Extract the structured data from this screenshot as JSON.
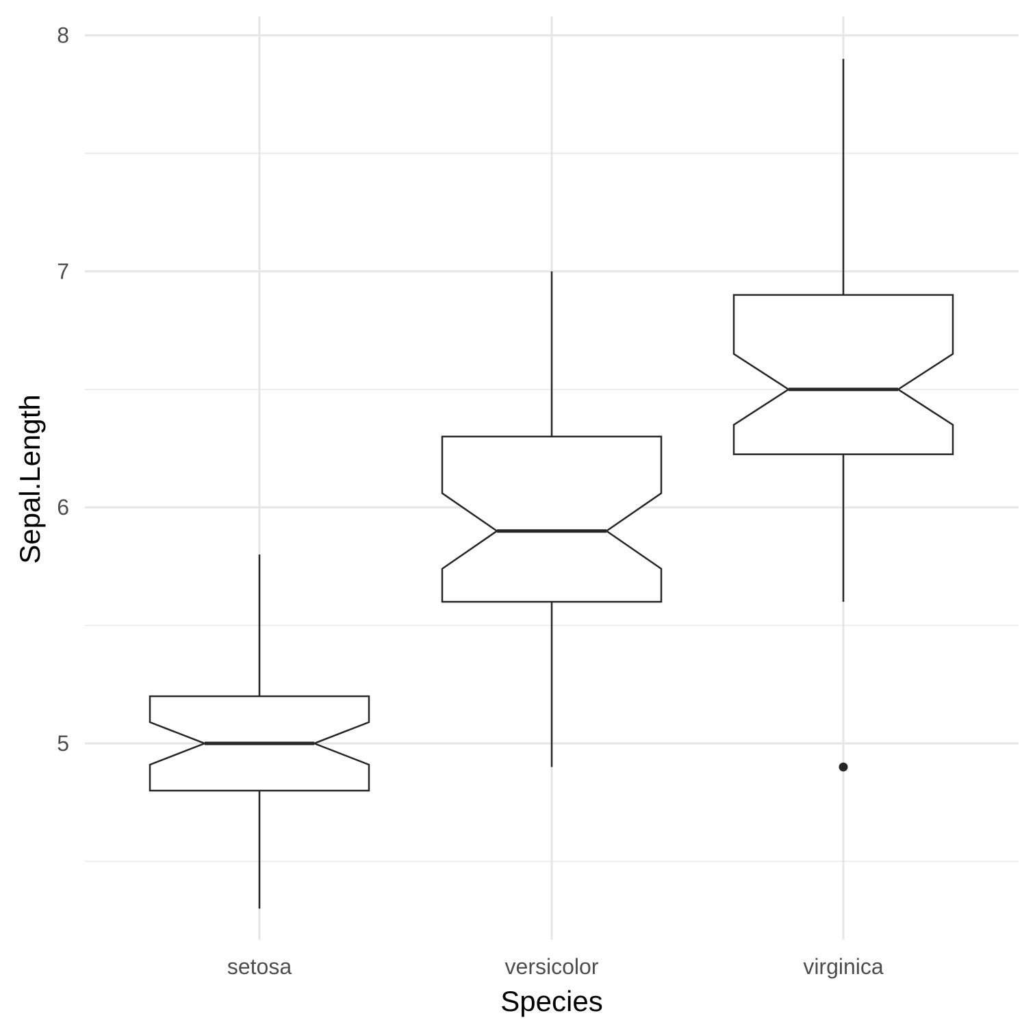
{
  "chart_data": {
    "type": "boxplot",
    "notched": true,
    "xlabel": "Species",
    "ylabel": "Sepal.Length",
    "categories": [
      "setosa",
      "versicolor",
      "virginica"
    ],
    "ylim": [
      4.22,
      8.08
    ],
    "yticks": [
      5,
      6,
      7,
      8
    ],
    "yminor": [
      4.5,
      5.5,
      6.5,
      7.5
    ],
    "grid": true,
    "boxes": [
      {
        "category": "setosa",
        "min": 4.3,
        "q1": 4.8,
        "median": 5.0,
        "q3": 5.2,
        "max": 5.8,
        "notch_low": 4.91,
        "notch_high": 5.09,
        "outliers": []
      },
      {
        "category": "versicolor",
        "min": 4.9,
        "q1": 5.6,
        "median": 5.9,
        "q3": 6.3,
        "max": 7.0,
        "notch_low": 5.74,
        "notch_high": 6.06,
        "outliers": []
      },
      {
        "category": "virginica",
        "min": 5.6,
        "q1": 6.225,
        "median": 6.5,
        "q3": 6.9,
        "max": 7.9,
        "notch_low": 6.35,
        "notch_high": 6.65,
        "outliers": [
          4.9
        ]
      }
    ],
    "colors": {
      "stroke": "#262626",
      "fill": "#ffffff",
      "grid": "#e6e6e6"
    }
  }
}
